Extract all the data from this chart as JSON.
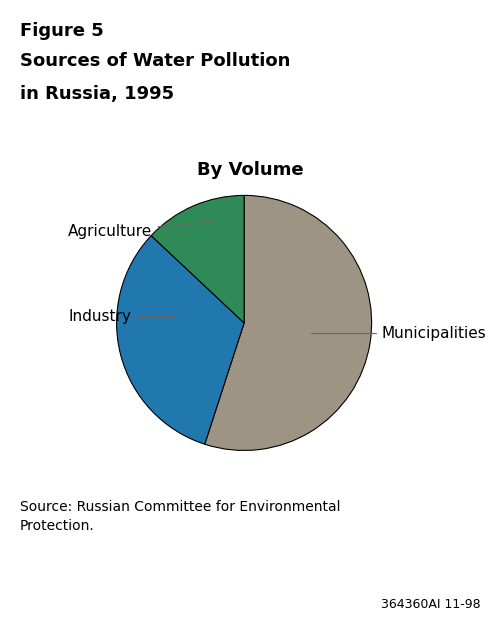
{
  "title_line1": "Figure 5",
  "title_line2": "Sources of Water Pollution",
  "title_line3": "in Russia, 1995",
  "subtitle": "By Volume",
  "slices": [
    "Municipalities",
    "Industry",
    "Agriculture"
  ],
  "values": [
    55,
    32,
    13
  ],
  "colors": [
    "#9e9484",
    "#2178ae",
    "#2e8b57"
  ],
  "labels": [
    "Municipalities",
    "Industry",
    "Agriculture"
  ],
  "source_text": "Source: Russian Committee for Environmental\nProtection.",
  "footnote": "364360AI 11-98",
  "background_color": "#ffffff",
  "title_fontsize": 13,
  "subtitle_fontsize": 13,
  "label_fontsize": 11,
  "source_fontsize": 10,
  "start_angle": 90
}
